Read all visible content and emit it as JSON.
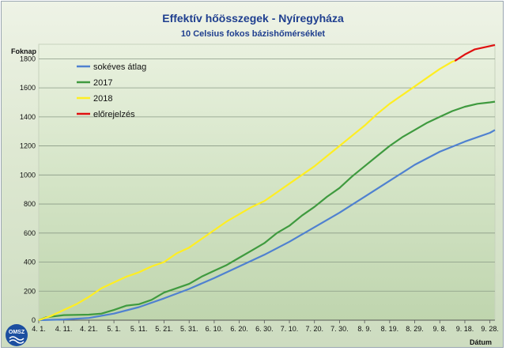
{
  "chart_data": {
    "type": "line",
    "title": "Effektív hőösszegek - Nyíregyháza",
    "subtitle": "10 Celsius fokos bázishőmérséklet",
    "ylabel": "Foknap",
    "xlabel": "Dátum",
    "ylim": [
      0,
      1900
    ],
    "yticks": [
      0,
      200,
      400,
      600,
      800,
      1000,
      1200,
      1400,
      1600,
      1800
    ],
    "xlim": [
      0,
      182
    ],
    "xticks": [
      {
        "label": "4. 1.",
        "x": 0
      },
      {
        "label": "4. 11.",
        "x": 10
      },
      {
        "label": "4. 21.",
        "x": 20
      },
      {
        "label": "5. 1.",
        "x": 30
      },
      {
        "label": "5. 11.",
        "x": 40
      },
      {
        "label": "5. 21.",
        "x": 50
      },
      {
        "label": "5. 31.",
        "x": 60
      },
      {
        "label": "6. 10.",
        "x": 70
      },
      {
        "label": "6. 20.",
        "x": 80
      },
      {
        "label": "6. 30.",
        "x": 90
      },
      {
        "label": "7. 10.",
        "x": 100
      },
      {
        "label": "7. 20.",
        "x": 110
      },
      {
        "label": "7. 30.",
        "x": 120
      },
      {
        "label": "8. 9.",
        "x": 130
      },
      {
        "label": "8. 19.",
        "x": 140
      },
      {
        "label": "8. 29.",
        "x": 150
      },
      {
        "label": "9. 8.",
        "x": 160
      },
      {
        "label": "9. 18.",
        "x": 170
      },
      {
        "label": "9. 28.",
        "x": 180
      }
    ],
    "grid": true,
    "legend_position": "top-left",
    "series": [
      {
        "name": "sokéves átlag",
        "color": "#4f81d0",
        "points": [
          [
            0,
            0
          ],
          [
            10,
            5
          ],
          [
            20,
            15
          ],
          [
            30,
            45
          ],
          [
            40,
            90
          ],
          [
            50,
            150
          ],
          [
            60,
            215
          ],
          [
            70,
            290
          ],
          [
            80,
            370
          ],
          [
            90,
            450
          ],
          [
            100,
            540
          ],
          [
            110,
            640
          ],
          [
            120,
            740
          ],
          [
            130,
            850
          ],
          [
            140,
            960
          ],
          [
            150,
            1070
          ],
          [
            160,
            1160
          ],
          [
            170,
            1230
          ],
          [
            180,
            1290
          ],
          [
            182,
            1310
          ]
        ]
      },
      {
        "name": "2017",
        "color": "#3f9a3f",
        "points": [
          [
            0,
            0
          ],
          [
            3,
            20
          ],
          [
            10,
            35
          ],
          [
            20,
            38
          ],
          [
            25,
            45
          ],
          [
            30,
            70
          ],
          [
            35,
            100
          ],
          [
            40,
            110
          ],
          [
            45,
            140
          ],
          [
            50,
            190
          ],
          [
            55,
            220
          ],
          [
            60,
            250
          ],
          [
            65,
            300
          ],
          [
            70,
            340
          ],
          [
            75,
            380
          ],
          [
            80,
            430
          ],
          [
            85,
            480
          ],
          [
            90,
            530
          ],
          [
            95,
            600
          ],
          [
            100,
            650
          ],
          [
            105,
            720
          ],
          [
            110,
            780
          ],
          [
            115,
            850
          ],
          [
            120,
            910
          ],
          [
            125,
            990
          ],
          [
            130,
            1060
          ],
          [
            135,
            1130
          ],
          [
            140,
            1200
          ],
          [
            145,
            1260
          ],
          [
            150,
            1310
          ],
          [
            155,
            1360
          ],
          [
            160,
            1400
          ],
          [
            165,
            1440
          ],
          [
            170,
            1470
          ],
          [
            175,
            1490
          ],
          [
            180,
            1500
          ],
          [
            182,
            1505
          ]
        ]
      },
      {
        "name": "2018",
        "color": "#ffee22",
        "points": [
          [
            0,
            0
          ],
          [
            5,
            30
          ],
          [
            10,
            70
          ],
          [
            15,
            110
          ],
          [
            20,
            160
          ],
          [
            25,
            220
          ],
          [
            30,
            260
          ],
          [
            35,
            300
          ],
          [
            40,
            330
          ],
          [
            45,
            370
          ],
          [
            50,
            400
          ],
          [
            55,
            460
          ],
          [
            60,
            500
          ],
          [
            65,
            560
          ],
          [
            70,
            620
          ],
          [
            75,
            680
          ],
          [
            80,
            730
          ],
          [
            85,
            780
          ],
          [
            90,
            820
          ],
          [
            95,
            880
          ],
          [
            100,
            940
          ],
          [
            105,
            1000
          ],
          [
            110,
            1060
          ],
          [
            115,
            1130
          ],
          [
            120,
            1200
          ],
          [
            125,
            1270
          ],
          [
            130,
            1340
          ],
          [
            135,
            1420
          ],
          [
            140,
            1490
          ],
          [
            145,
            1550
          ],
          [
            150,
            1610
          ],
          [
            155,
            1670
          ],
          [
            160,
            1730
          ],
          [
            165,
            1780
          ],
          [
            166,
            1785
          ]
        ]
      },
      {
        "name": "előrejelzés",
        "color": "#e01010",
        "points": [
          [
            166,
            1785
          ],
          [
            170,
            1830
          ],
          [
            174,
            1865
          ],
          [
            178,
            1880
          ],
          [
            182,
            1895
          ]
        ]
      }
    ]
  },
  "logo": {
    "text": "OMSZ"
  }
}
